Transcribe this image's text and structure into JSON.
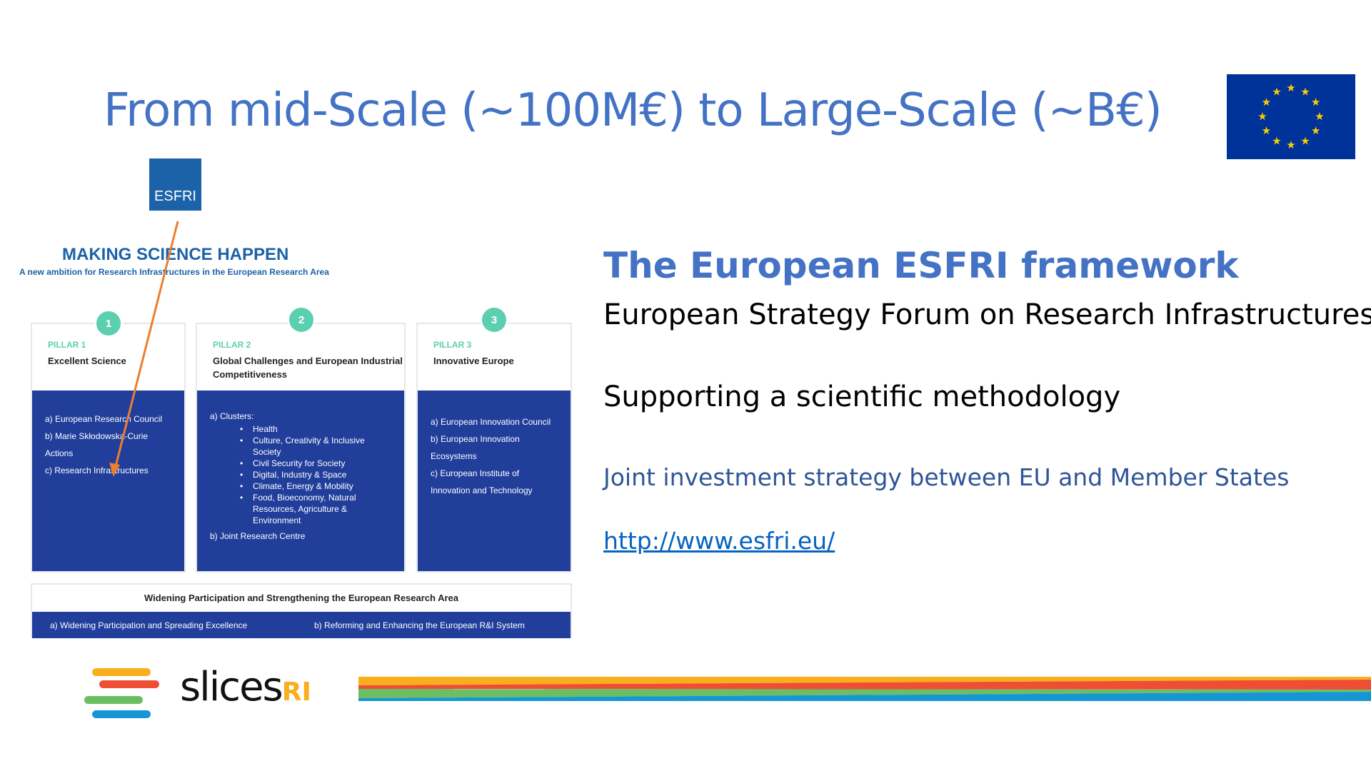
{
  "title": "From mid-Scale (~100M€) to Large-Scale (~B€)",
  "eu_flag": {
    "icon": "eu-flag-icon",
    "color": "#003399",
    "star_color": "#FFCC00"
  },
  "esfri_logo": "ESFRI",
  "figure": {
    "heading": "MAKING SCIENCE HAPPEN",
    "subheading": "A new ambition for Research Infrastructures in the European Research Area",
    "pillars": [
      {
        "number": "1",
        "label": "PILLAR 1",
        "title": "Excellent Science",
        "items": [
          "a)  European Research Council",
          "b)  Marie Skłodowska-Curie Actions",
          "c)  Research Infrastructures"
        ]
      },
      {
        "number": "2",
        "label": "PILLAR 2",
        "title": "Global Challenges and European Industrial Competitiveness",
        "intro": "a)  Clusters:",
        "clusters": [
          "Health",
          "Culture, Creativity & Inclusive Society",
          "Civil Security for Society",
          "Digital, Industry & Space",
          "Climate, Energy & Mobility",
          "Food, Bioeconomy, Natural Resources, Agriculture & Environment"
        ],
        "outro": "b)  Joint Research Centre"
      },
      {
        "number": "3",
        "label": "PILLAR 3",
        "title": "Innovative Europe",
        "items": [
          "a)  European Innovation Council",
          "b)  European Innovation Ecosystems",
          "c)  European Institute of Innovation and Technology"
        ]
      }
    ],
    "widening": {
      "title": "Widening Participation and Strengthening the European Research Area",
      "items": [
        "a)  Widening Participation and Spreading Excellence",
        "b)  Reforming and Enhancing the European R&I System"
      ]
    },
    "arrow_color": "#ED7D31"
  },
  "right": {
    "heading": "The European ESFRI framework",
    "expansion": "European Strategy Forum on Research Infrastructures",
    "methodology": "Supporting a scientific methodology",
    "investment": "Joint investment strategy between EU and Member States",
    "link": "http://www.esfri.eu/"
  },
  "footer": {
    "logo_text": "slices",
    "logo_suffix": "RI",
    "colors": [
      "#F9AE1C",
      "#EE4E34",
      "#6CBE62",
      "#1696D2"
    ]
  }
}
